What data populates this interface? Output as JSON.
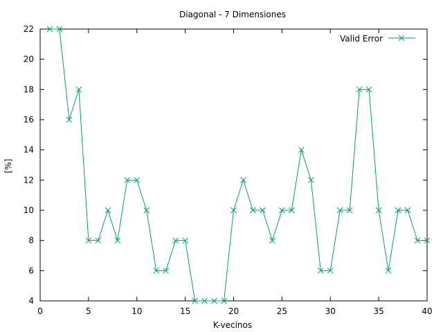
{
  "chart_data": {
    "type": "line",
    "title": "Diagonal - 7 Dimensiones",
    "xlabel": "K-vecinos",
    "ylabel": "[%]",
    "xlim": [
      0,
      40
    ],
    "ylim": [
      4,
      22
    ],
    "xticks": [
      0,
      5,
      10,
      15,
      20,
      25,
      30,
      35,
      40
    ],
    "yticks": [
      4,
      6,
      8,
      10,
      12,
      14,
      16,
      18,
      20,
      22
    ],
    "grid": false,
    "legend_position": "top-right",
    "series": [
      {
        "name": "Valid Error",
        "color": "#009e73",
        "marker": "x",
        "x": [
          1,
          2,
          3,
          4,
          5,
          6,
          7,
          8,
          9,
          10,
          11,
          12,
          13,
          14,
          15,
          16,
          17,
          18,
          19,
          20,
          21,
          22,
          23,
          24,
          25,
          26,
          27,
          28,
          29,
          30,
          31,
          32,
          33,
          34,
          35,
          36,
          37,
          38,
          39,
          40
        ],
        "values": [
          22,
          22,
          16,
          18,
          8,
          8,
          10,
          8,
          12,
          12,
          10,
          6,
          6,
          8,
          8,
          4,
          4,
          4,
          4,
          10,
          12,
          10,
          10,
          8,
          10,
          10,
          14,
          12,
          6,
          6,
          10,
          10,
          18,
          18,
          10,
          6,
          10,
          10,
          8,
          8
        ]
      }
    ]
  }
}
